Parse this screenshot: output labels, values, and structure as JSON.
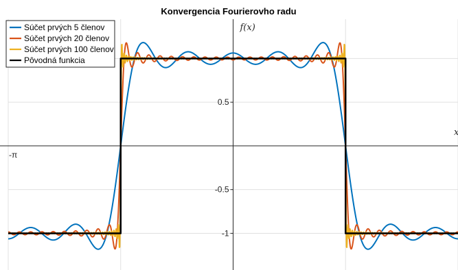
{
  "chart_data": {
    "type": "line",
    "title": "Konvergencia Fourierovho radu",
    "xlabel": "x",
    "ylabel": "f(x)",
    "xlim": [
      -3.14159,
      3.14159
    ],
    "ylim": [
      -1.42,
      1.45
    ],
    "grid": true,
    "legend_position": "top-left",
    "x_ticks": [
      {
        "value": -3.14159,
        "label": "-π"
      }
    ],
    "y_ticks": [
      {
        "value": 0.5,
        "label": "0.5"
      },
      {
        "value": -0.5,
        "label": "-0.5"
      },
      {
        "value": -1,
        "label": "-1"
      }
    ],
    "series": [
      {
        "name": "Súčet prvých 5 členov",
        "color": "#0072BD",
        "terms": 5,
        "linewidth": 2
      },
      {
        "name": "Súčet prvých 20 členov",
        "color": "#D95319",
        "terms": 20,
        "linewidth": 2
      },
      {
        "name": "Súčet prvých 100 členov",
        "color": "#EDB120",
        "terms": 100,
        "linewidth": 2
      },
      {
        "name": "Pôvodná funkcia",
        "color": "#000000",
        "terms": 0,
        "linewidth": 2.5
      }
    ]
  }
}
